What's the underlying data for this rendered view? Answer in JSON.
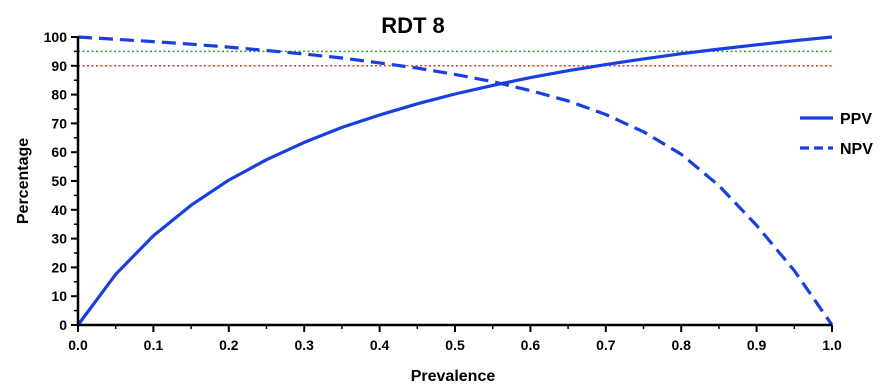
{
  "chart_data": {
    "type": "line",
    "title": "RDT 8",
    "xlabel": "Prevalence",
    "ylabel": "Percentage",
    "xlim": [
      0,
      1
    ],
    "ylim": [
      0,
      100
    ],
    "x_ticks": [
      0.0,
      0.1,
      0.2,
      0.3,
      0.4,
      0.5,
      0.6,
      0.7,
      0.8,
      0.9,
      1.0
    ],
    "x_tick_labels": [
      "0.0",
      "0.1",
      "0.2",
      "0.3",
      "0.4",
      "0.5",
      "0.6",
      "0.7",
      "0.8",
      "0.9",
      "1.0"
    ],
    "y_ticks": [
      0,
      10,
      20,
      30,
      40,
      50,
      60,
      70,
      80,
      90,
      100
    ],
    "y_tick_labels": [
      "0",
      "10",
      "20",
      "30",
      "40",
      "50",
      "60",
      "70",
      "80",
      "90",
      "100"
    ],
    "grid": false,
    "legend_position": "right",
    "series": [
      {
        "name": "PPV",
        "style": "solid",
        "color": "#1a3fe0",
        "x": [
          0.0,
          0.05,
          0.1,
          0.15,
          0.2,
          0.25,
          0.3,
          0.35,
          0.4,
          0.45,
          0.5,
          0.55,
          0.6,
          0.65,
          0.7,
          0.75,
          0.8,
          0.85,
          0.9,
          0.95,
          1.0
        ],
        "y": [
          0,
          17.6,
          31.0,
          41.6,
          50.3,
          57.4,
          63.4,
          68.6,
          72.9,
          76.8,
          80.2,
          83.2,
          85.9,
          88.3,
          90.4,
          92.4,
          94.2,
          95.8,
          97.3,
          98.7,
          100
        ]
      },
      {
        "name": "NPV",
        "style": "dashed",
        "color": "#1a3fe0",
        "x": [
          0.0,
          0.05,
          0.1,
          0.15,
          0.2,
          0.25,
          0.3,
          0.35,
          0.4,
          0.45,
          0.5,
          0.55,
          0.6,
          0.65,
          0.7,
          0.75,
          0.8,
          0.85,
          0.9,
          0.95,
          1.0
        ],
        "y": [
          100,
          99.2,
          98.4,
          97.5,
          96.5,
          95.3,
          94.1,
          92.7,
          91.0,
          89.2,
          87.0,
          84.5,
          81.4,
          77.8,
          73.1,
          67.1,
          59.3,
          48.4,
          34.6,
          18.9,
          0
        ]
      }
    ],
    "reference_lines": [
      {
        "y": 95,
        "color": "#2ca02c",
        "style": "dotted"
      },
      {
        "y": 90,
        "color": "#e8392b",
        "style": "dotted"
      }
    ]
  }
}
